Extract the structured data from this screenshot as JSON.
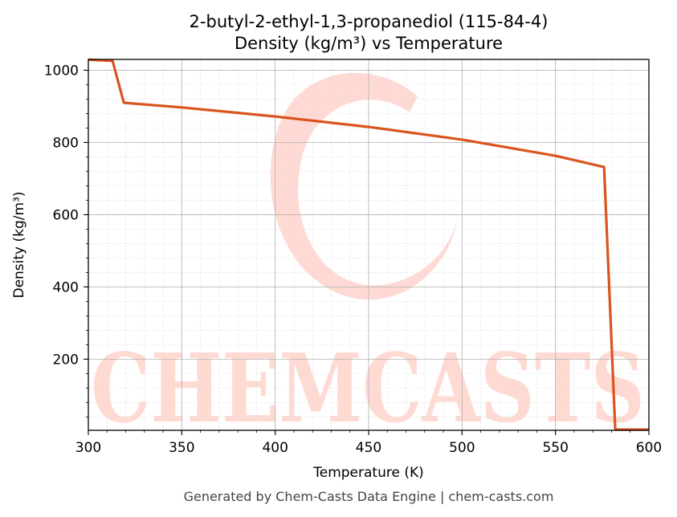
{
  "chart_data": {
    "type": "line",
    "title": "2-butyl-2-ethyl-1,3-propanediol (115-84-4)",
    "subtitle": "Density (kg/m³) vs Temperature",
    "xlabel": "Temperature (K)",
    "ylabel": "Density (kg/m³)",
    "xlim": [
      300,
      600
    ],
    "ylim": [
      3,
      1030
    ],
    "xticks": [
      300,
      350,
      400,
      450,
      500,
      550,
      600
    ],
    "yticks": [
      200,
      400,
      600,
      800,
      1000
    ],
    "grid": true,
    "series": [
      {
        "color": "#d9541e",
        "x": [
          300,
          313,
          319,
          350,
          400,
          450,
          500,
          550,
          576,
          582,
          600
        ],
        "y": [
          1029,
          1026,
          910,
          897,
          872,
          843,
          808,
          763,
          732,
          5,
          5
        ]
      }
    ]
  },
  "watermark": {
    "text": "CHEMCASTS"
  },
  "footer": "Generated by Chem-Casts Data Engine | chem-casts.com"
}
